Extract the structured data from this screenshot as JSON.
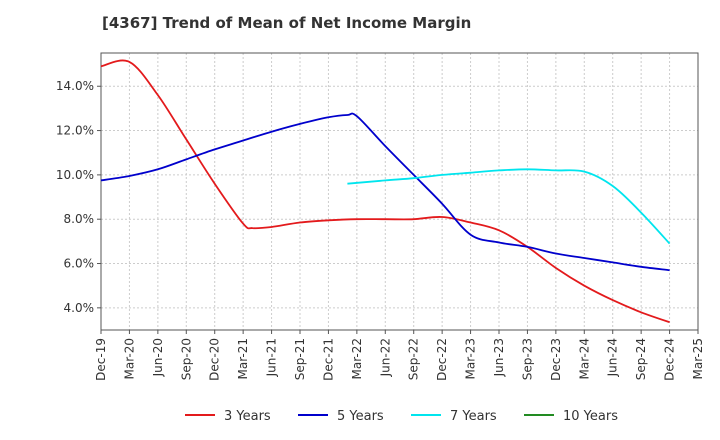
{
  "chart_data": {
    "type": "line",
    "title": "[4367]  Trend of Mean of Net Income Margin",
    "xlabel": "",
    "ylabel": "",
    "x_ticks": [
      "Dec-19",
      "Mar-20",
      "Jun-20",
      "Sep-20",
      "Dec-20",
      "Mar-21",
      "Jun-21",
      "Sep-21",
      "Dec-21",
      "Mar-22",
      "Jun-22",
      "Sep-22",
      "Dec-22",
      "Mar-23",
      "Jun-23",
      "Sep-23",
      "Dec-23",
      "Mar-24",
      "Jun-24",
      "Sep-24",
      "Dec-24",
      "Mar-25"
    ],
    "y_ticks": [
      "4.0%",
      "6.0%",
      "8.0%",
      "10.0%",
      "12.0%",
      "14.0%"
    ],
    "ylim": [
      3.0,
      15.5
    ],
    "grid": true,
    "legend_position": "bottom",
    "series": [
      {
        "name": "3 Years",
        "color": "#e31a1c",
        "points": [
          [
            "Dec-19",
            14.9
          ],
          [
            "Mar-20",
            15.1
          ],
          [
            "Jun-20",
            13.6
          ],
          [
            "Sep-20",
            11.6
          ],
          [
            "Dec-20",
            9.6
          ],
          [
            "Mar-21",
            7.8
          ],
          [
            "Apr-21",
            7.6
          ],
          [
            "Jun-21",
            7.65
          ],
          [
            "Sep-21",
            7.85
          ],
          [
            "Dec-21",
            7.95
          ],
          [
            "Mar-22",
            8.0
          ],
          [
            "Jun-22",
            8.0
          ],
          [
            "Sep-22",
            8.0
          ],
          [
            "Dec-22",
            8.1
          ],
          [
            "Mar-23",
            7.85
          ],
          [
            "Jun-23",
            7.5
          ],
          [
            "Sep-23",
            6.75
          ],
          [
            "Dec-23",
            5.8
          ],
          [
            "Mar-24",
            5.0
          ],
          [
            "Jun-24",
            4.35
          ],
          [
            "Sep-24",
            3.8
          ],
          [
            "Dec-24",
            3.35
          ]
        ]
      },
      {
        "name": "5 Years",
        "color": "#0000cc",
        "points": [
          [
            "Dec-19",
            9.75
          ],
          [
            "Mar-20",
            9.95
          ],
          [
            "Jun-20",
            10.25
          ],
          [
            "Sep-20",
            10.7
          ],
          [
            "Dec-20",
            11.15
          ],
          [
            "Mar-21",
            11.55
          ],
          [
            "Jun-21",
            11.95
          ],
          [
            "Sep-21",
            12.3
          ],
          [
            "Dec-21",
            12.6
          ],
          [
            "Feb-22",
            12.7
          ],
          [
            "Mar-22",
            12.65
          ],
          [
            "Jun-22",
            11.3
          ],
          [
            "Sep-22",
            10.0
          ],
          [
            "Dec-22",
            8.7
          ],
          [
            "Mar-23",
            7.3
          ],
          [
            "Jun-23",
            6.95
          ],
          [
            "Sep-23",
            6.75
          ],
          [
            "Dec-23",
            6.45
          ],
          [
            "Mar-24",
            6.25
          ],
          [
            "Jun-24",
            6.05
          ],
          [
            "Sep-24",
            5.85
          ],
          [
            "Dec-24",
            5.7
          ]
        ]
      },
      {
        "name": "7 Years",
        "color": "#00e5ee",
        "points": [
          [
            "Feb-22",
            9.6
          ],
          [
            "Jun-22",
            9.75
          ],
          [
            "Sep-22",
            9.85
          ],
          [
            "Dec-22",
            10.0
          ],
          [
            "Mar-23",
            10.1
          ],
          [
            "Jun-23",
            10.2
          ],
          [
            "Sep-23",
            10.25
          ],
          [
            "Dec-23",
            10.2
          ],
          [
            "Mar-24",
            10.15
          ],
          [
            "Jun-24",
            9.5
          ],
          [
            "Sep-24",
            8.3
          ],
          [
            "Dec-24",
            6.9
          ]
        ]
      },
      {
        "name": "10 Years",
        "color": "#228b22",
        "points": []
      }
    ]
  }
}
